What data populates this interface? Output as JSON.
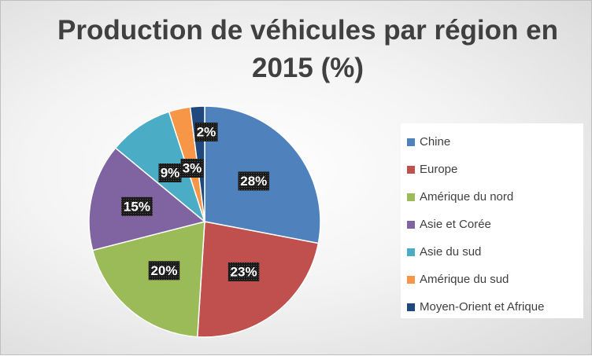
{
  "chart_data": {
    "type": "pie",
    "title": "Production de véhicules par région en 2015 (%)",
    "series": [
      {
        "name": "Chine",
        "value": 28,
        "label": "28%",
        "color": "#4f81bd"
      },
      {
        "name": "Europe",
        "value": 23,
        "label": "23%",
        "color": "#c0504d"
      },
      {
        "name": "Amérique du nord",
        "value": 20,
        "label": "20%",
        "color": "#9bbb59"
      },
      {
        "name": "Asie et Corée",
        "value": 15,
        "label": "15%",
        "color": "#8064a2"
      },
      {
        "name": "Asie du sud",
        "value": 9,
        "label": "9%",
        "color": "#4bacc6"
      },
      {
        "name": "Amérique du sud",
        "value": 3,
        "label": "3%",
        "color": "#f79646"
      },
      {
        "name": "Moyen-Orient et Afrique",
        "value": 2,
        "label": "2%",
        "color": "#1f497d"
      }
    ],
    "legend_position": "right",
    "start_angle": "top, clockwise"
  }
}
